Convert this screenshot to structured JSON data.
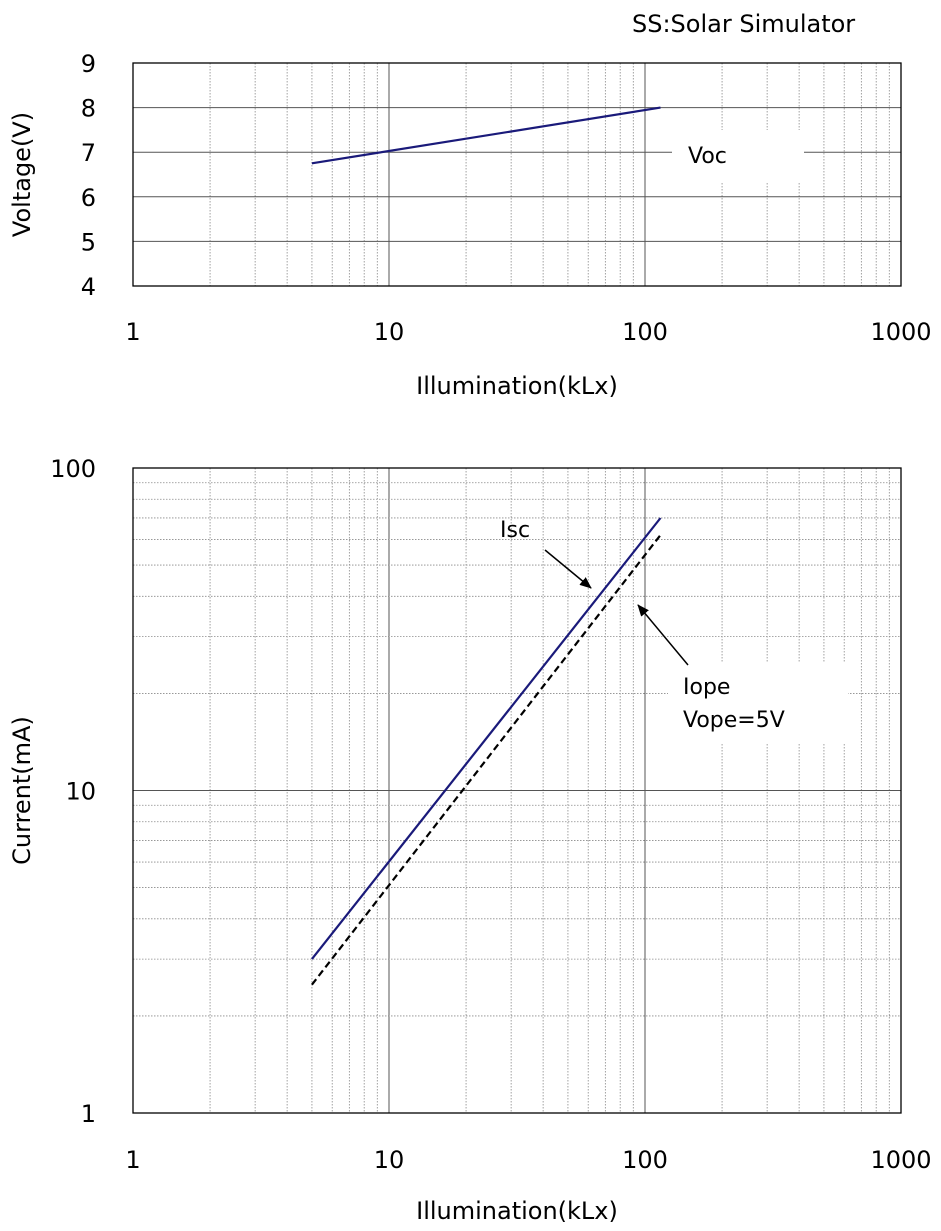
{
  "note": "SS:Solar Simulator",
  "chart_data": [
    {
      "type": "line",
      "xscale": "log",
      "xlim": [
        1,
        1000
      ],
      "ylim": [
        4,
        9
      ],
      "xticks": [
        "1",
        "10",
        "100",
        "1000"
      ],
      "yticks": [
        "4",
        "5",
        "6",
        "7",
        "8",
        "9"
      ],
      "xlabel": "Illumination(kLx)",
      "ylabel": "Voltage(V)",
      "grid": true,
      "series": [
        {
          "name": "Voc",
          "color": "#1a1a7a",
          "style": "solid",
          "x": [
            5,
            115
          ],
          "y": [
            6.75,
            8.0
          ]
        }
      ],
      "annotations": [
        {
          "text": "Voc"
        }
      ]
    },
    {
      "type": "line",
      "xscale": "log",
      "yscale": "log",
      "xlim": [
        1,
        1000
      ],
      "ylim": [
        1,
        100
      ],
      "xticks": [
        "1",
        "10",
        "100",
        "1000"
      ],
      "yticks": [
        "1",
        "10",
        "100"
      ],
      "xlabel": "Illumination(kLx)",
      "ylabel": "Current(mA)",
      "grid": true,
      "series": [
        {
          "name": "Isc",
          "color": "#1a1a7a",
          "style": "solid",
          "x": [
            5,
            115
          ],
          "y": [
            3.0,
            70
          ]
        },
        {
          "name": "Iope Vope=5V",
          "color": "#000000",
          "style": "dashed",
          "x": [
            5,
            115
          ],
          "y": [
            2.5,
            62
          ]
        }
      ],
      "annotations": [
        {
          "text": "Isc"
        },
        {
          "text": "Iope"
        },
        {
          "text": "Vope=5V"
        }
      ]
    }
  ]
}
